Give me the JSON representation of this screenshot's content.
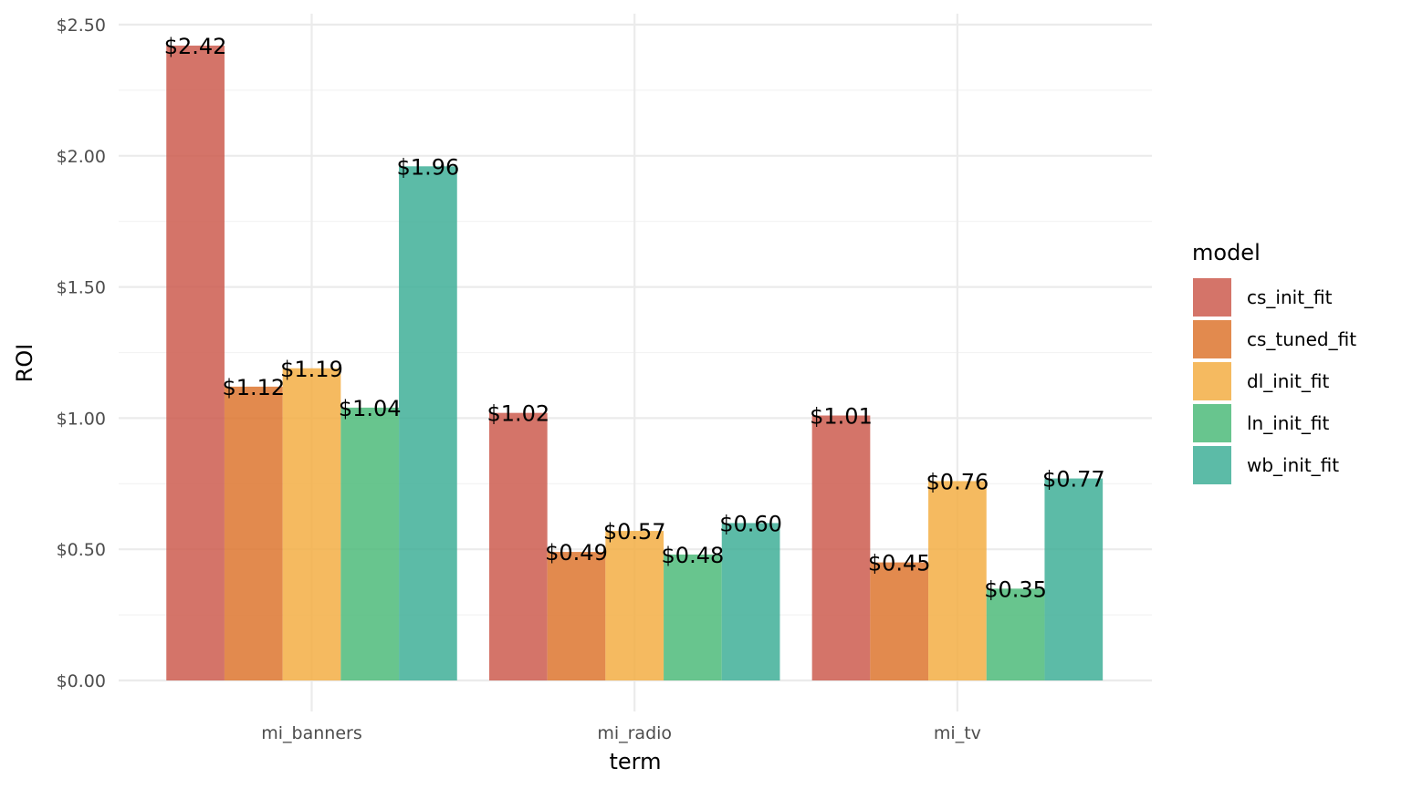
{
  "chart_data": {
    "type": "bar",
    "title": "",
    "xlabel": "term",
    "ylabel": "ROI",
    "categories": [
      "mi_banners",
      "mi_radio",
      "mi_tv"
    ],
    "ylim": [
      0,
      2.5
    ],
    "y_ticks": [
      0,
      0.5,
      1.0,
      1.5,
      2.0,
      2.5
    ],
    "y_tick_labels": [
      "$0.00",
      "$0.50",
      "$1.00",
      "$1.50",
      "$2.00",
      "$2.50"
    ],
    "grid": true,
    "legend": {
      "title": "model",
      "position": "right"
    },
    "series": [
      {
        "name": "cs_init_fit",
        "color": "#CD5C4F",
        "values": [
          2.42,
          1.02,
          1.01
        ],
        "labels": [
          "$2.42",
          "$1.02",
          "$1.01"
        ]
      },
      {
        "name": "cs_tuned_fit",
        "color": "#DD752F",
        "values": [
          1.12,
          0.49,
          0.45
        ],
        "labels": [
          "$1.12",
          "$0.49",
          "$0.45"
        ]
      },
      {
        "name": "dl_init_fit",
        "color": "#F3AE44",
        "values": [
          1.19,
          0.57,
          0.76
        ],
        "labels": [
          "$1.19",
          "$0.57",
          "$0.76"
        ]
      },
      {
        "name": "ln_init_fit",
        "color": "#4EBB7A",
        "values": [
          1.04,
          0.48,
          0.35
        ],
        "labels": [
          "$1.04",
          "$0.48",
          "$0.35"
        ]
      },
      {
        "name": "wb_init_fit",
        "color": "#3FAF98",
        "values": [
          1.96,
          0.6,
          0.77
        ],
        "labels": [
          "$1.96",
          "$0.60",
          "$0.77"
        ]
      }
    ]
  }
}
